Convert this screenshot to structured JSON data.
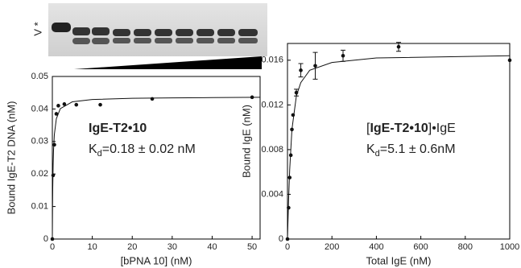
{
  "gel": {
    "label": "V *"
  },
  "chart_data": [
    {
      "type": "scatter",
      "xlabel": "[bPNA 10] (nM)",
      "ylabel": "Bound IgE-T2 DNA (nM)",
      "xlim": [
        0,
        52
      ],
      "xticks": [
        0,
        10,
        20,
        30,
        40,
        50
      ],
      "ylim": [
        0,
        0.05
      ],
      "yticks": [
        0,
        0.01,
        0.02,
        0.03,
        0.04,
        0.05
      ],
      "annotation": [
        [
          {
            "text": "IgE-T2•10",
            "style": "bold"
          }
        ],
        [
          {
            "text": "K",
            "style": "normal"
          },
          {
            "text": "d",
            "style": "sub"
          },
          {
            "text": "=0.18 ± 0.02 nM",
            "style": "normal"
          }
        ]
      ],
      "series": [
        {
          "color": "#111",
          "style": "points",
          "x": [
            0,
            0.2,
            0.5,
            1,
            1.5,
            3,
            6,
            12,
            25,
            50
          ],
          "values": [
            0,
            0.0196,
            0.029,
            0.0385,
            0.041,
            0.0415,
            0.0413,
            0.0413,
            0.0431,
            0.0436
          ]
        },
        {
          "color": "#111",
          "style": "line",
          "x": [
            0,
            0.05,
            0.1,
            0.2,
            0.3,
            0.5,
            1,
            2,
            5,
            10,
            20,
            30,
            40,
            52
          ],
          "values": [
            0,
            0.0095,
            0.0156,
            0.023,
            0.0273,
            0.0321,
            0.037,
            0.0401,
            0.0422,
            0.0429,
            0.0433,
            0.0434,
            0.0435,
            0.0436
          ]
        }
      ]
    },
    {
      "type": "scatter",
      "xlabel": "Total IgE (nM)",
      "ylabel": "Bound IgE (nM)",
      "xlim": [
        0,
        1000
      ],
      "xticks": [
        0,
        200,
        400,
        600,
        800,
        1000
      ],
      "ylim": [
        0,
        0.0175
      ],
      "yticks": [
        0,
        0.004,
        0.008,
        0.012,
        0.016
      ],
      "annotation": [
        [
          {
            "text": "[",
            "style": "normal"
          },
          {
            "text": "IgE-T2•10",
            "style": "bold"
          },
          {
            "text": "]•IgE",
            "style": "normal"
          }
        ],
        [
          {
            "text": "K",
            "style": "normal"
          },
          {
            "text": "d",
            "style": "sub"
          },
          {
            "text": "=5.1 ± 0.6nM",
            "style": "normal"
          }
        ]
      ],
      "series": [
        {
          "color": "#111",
          "style": "points",
          "x": [
            0,
            5,
            10,
            15,
            20,
            25,
            40,
            60,
            125,
            250,
            500,
            1000
          ],
          "values": [
            0,
            0.0028,
            0.0055,
            0.0075,
            0.0098,
            0.0111,
            0.0131,
            0.0151,
            0.0155,
            0.0164,
            0.0172,
            0.016
          ],
          "errors": [
            0,
            0,
            0,
            0,
            0,
            0,
            0.0003,
            0.0006,
            0.0012,
            0.0005,
            0.0004,
            0
          ]
        },
        {
          "color": "#111",
          "style": "line",
          "x": [
            0,
            5,
            10,
            20,
            40,
            60,
            100,
            200,
            400,
            1000
          ],
          "values": [
            0,
            0.0035,
            0.0062,
            0.0098,
            0.0128,
            0.014,
            0.0151,
            0.0158,
            0.0162,
            0.0164
          ]
        }
      ]
    }
  ]
}
